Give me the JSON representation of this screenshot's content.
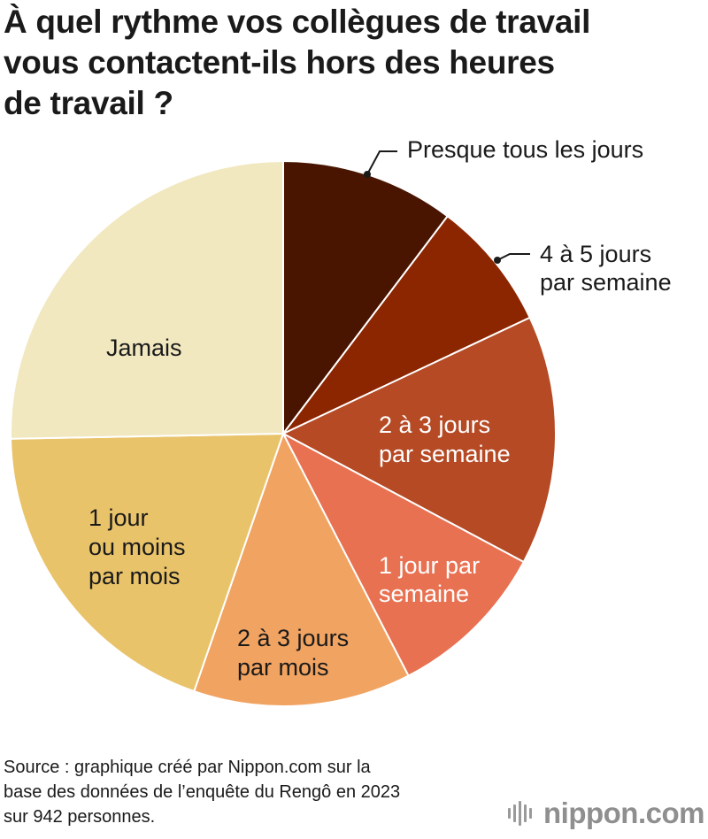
{
  "title_lines": [
    "À quel rythme vos collègues de travail",
    "vous contactent-ils hors des heures",
    "de travail ?"
  ],
  "chart_data": {
    "type": "pie",
    "title": "À quel rythme vos collègues de travail vous contactent-ils hors des heures de travail ?",
    "start_angle_deg": 0,
    "direction": "clockwise",
    "slices": [
      {
        "label": "Presque tous les jours",
        "lines": [
          "Presque tous les jours"
        ],
        "value": 10.3,
        "color": "#4a1500",
        "label_color": "#1a1a1a",
        "placement": "outside"
      },
      {
        "label": "4 à 5 jours par semaine",
        "lines": [
          "4 à 5 jours",
          "par semaine"
        ],
        "value": 7.7,
        "color": "#8c2600",
        "label_color": "#1a1a1a",
        "placement": "outside"
      },
      {
        "label": "2 à 3 jours par semaine",
        "lines": [
          "2 à 3 jours",
          "par semaine"
        ],
        "value": 14.8,
        "color": "#b54a25",
        "label_color": "#ffffff",
        "placement": "inside"
      },
      {
        "label": "1 jour par semaine",
        "lines": [
          "1 jour par",
          "semaine"
        ],
        "value": 9.6,
        "color": "#e87152",
        "label_color": "#ffffff",
        "placement": "inside"
      },
      {
        "label": "2 à 3 jours par mois",
        "lines": [
          "2 à 3 jours",
          "par mois"
        ],
        "value": 12.9,
        "color": "#f1a361",
        "label_color": "#1a1a1a",
        "placement": "inside"
      },
      {
        "label": "1 jour ou moins par mois",
        "lines": [
          "1 jour",
          "ou moins",
          "par mois"
        ],
        "value": 19.4,
        "color": "#e9c36a",
        "label_color": "#1a1a1a",
        "placement": "inside"
      },
      {
        "label": "Jamais",
        "lines": [
          "Jamais"
        ],
        "value": 25.3,
        "color": "#f1e8c0",
        "label_color": "#1a1a1a",
        "placement": "inside"
      }
    ]
  },
  "source_lines": [
    "Source : graphique créé par Nippon.com sur la",
    "base des données de l’enquête du Rengô en 2023",
    "sur 942 personnes."
  ],
  "brand": "nippon.com",
  "brand_icon": "sound-bars-icon"
}
